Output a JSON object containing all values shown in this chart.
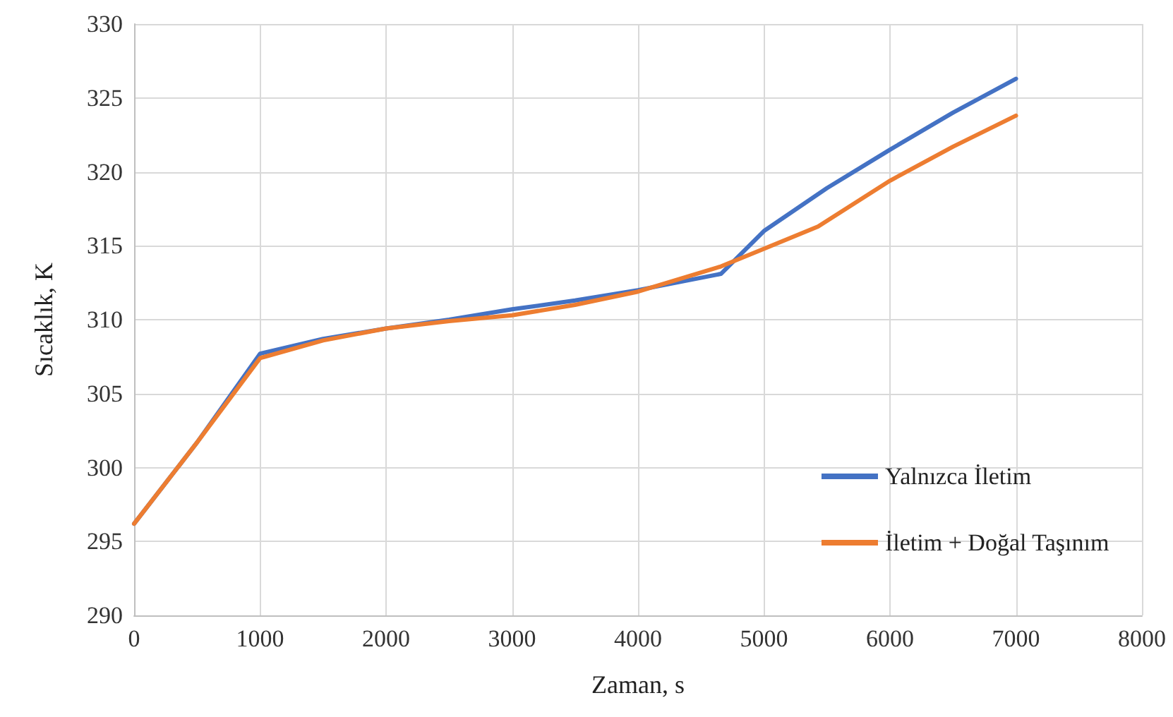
{
  "chart_data": {
    "type": "line",
    "xlabel": "Zaman, s",
    "ylabel": "Sıcaklık, K",
    "xlim": [
      0,
      8000
    ],
    "xticks": [
      0,
      1000,
      2000,
      3000,
      4000,
      5000,
      6000,
      7000,
      8000
    ],
    "ylim": [
      290,
      330
    ],
    "yticks": [
      290,
      295,
      300,
      305,
      310,
      315,
      320,
      325,
      330
    ],
    "grid": true,
    "legend": "bottom right",
    "marker": "none",
    "line_style": "solid",
    "series": [
      {
        "name": "Yalnızca İletim",
        "color": "#4472c4",
        "x": [
          0,
          500,
          1000,
          1500,
          2000,
          2500,
          3000,
          3500,
          4000,
          4658,
          5000,
          5500,
          6000,
          6500,
          7000
        ],
        "values": [
          296.2,
          301.7,
          307.7,
          308.7,
          309.4,
          310.0,
          310.7,
          311.3,
          312.0,
          313.1,
          316.0,
          318.9,
          321.5,
          324.0,
          326.3
        ]
      },
      {
        "name": "İletim + Doğal Taşınım",
        "color": "#ed7d31",
        "x": [
          0,
          500,
          1000,
          1500,
          2000,
          2500,
          3000,
          3500,
          4000,
          4658,
          5000,
          5429,
          6000,
          6500,
          7000
        ],
        "values": [
          296.2,
          301.7,
          307.4,
          308.6,
          309.4,
          309.9,
          310.3,
          311.0,
          311.9,
          313.6,
          314.8,
          316.3,
          319.4,
          321.7,
          323.8
        ]
      }
    ]
  }
}
